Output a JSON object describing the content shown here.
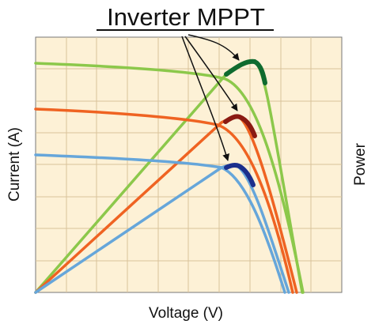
{
  "header": {
    "title": "Inverter MPPT"
  },
  "axes": {
    "x_label": "Voltage (V)",
    "y_label": "Current (A)",
    "y2_label": "Power"
  }
}
